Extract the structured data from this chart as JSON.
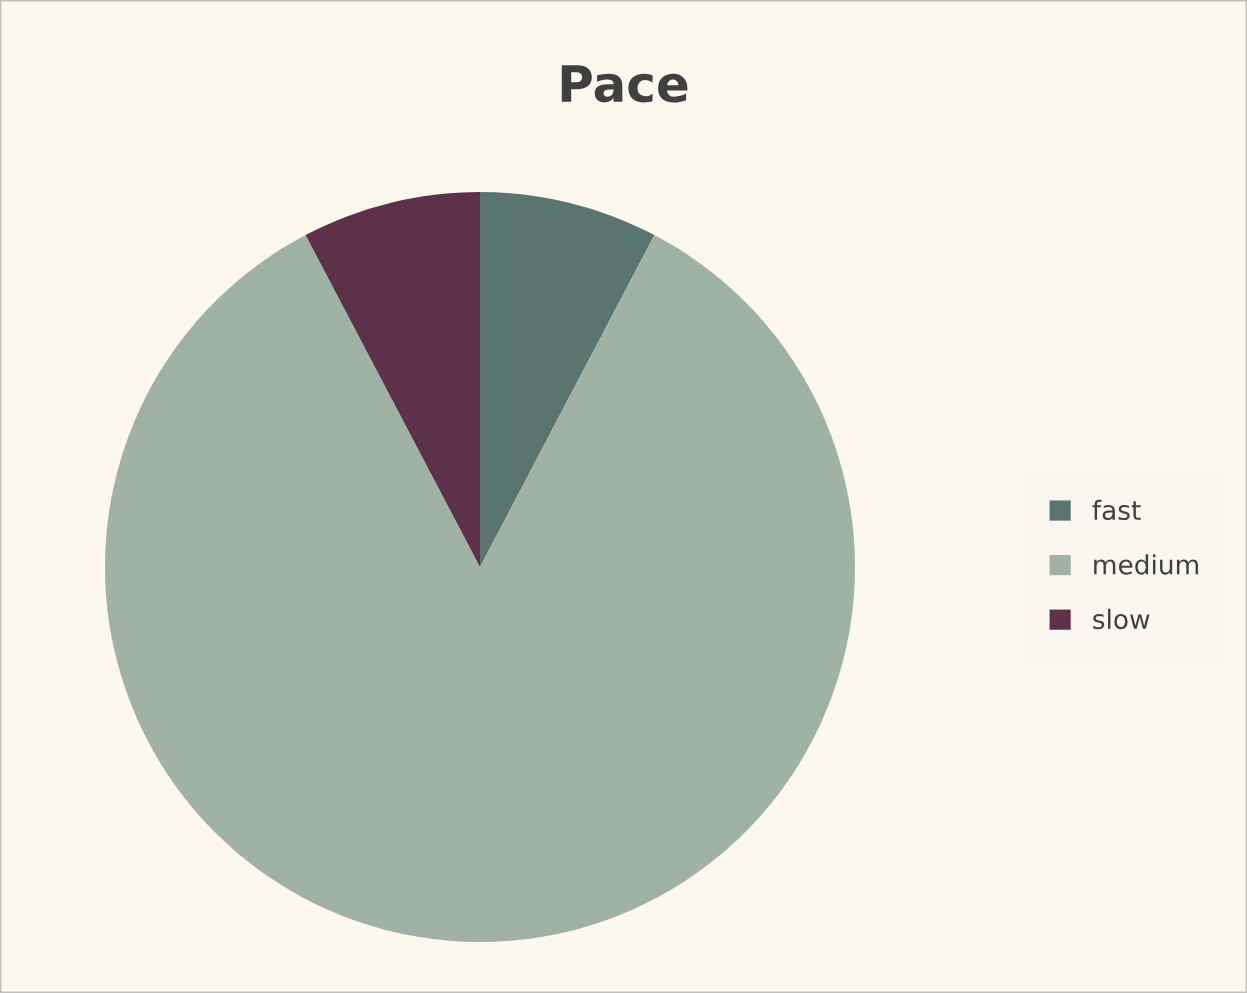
{
  "chart_data": {
    "type": "pie",
    "title": "Pace",
    "categories": [
      "fast",
      "medium",
      "slow"
    ],
    "values": [
      7.7,
      84.6,
      7.7
    ],
    "colors": [
      "#5a7570",
      "#a0b2a6",
      "#5e314b"
    ],
    "legend": "right"
  }
}
